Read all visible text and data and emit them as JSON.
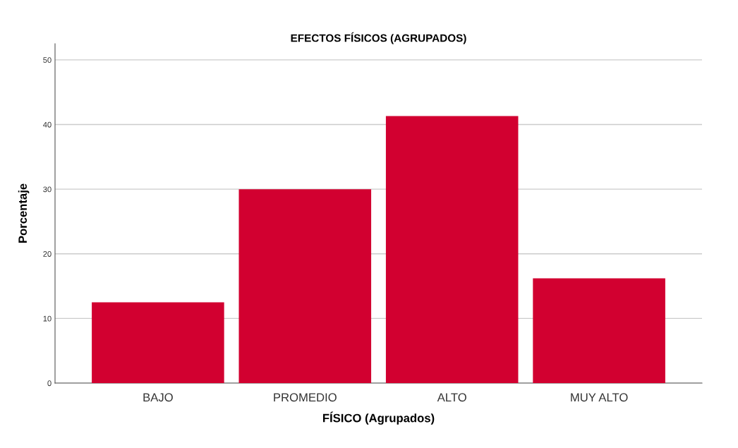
{
  "chart_data": {
    "type": "bar",
    "title": "EFECTOS FÍSICOS (AGRUPADOS)",
    "xlabel": "FÍSICO (Agrupados)",
    "ylabel": "Porcentaje",
    "categories": [
      "BAJO",
      "PROMEDIO",
      "ALTO",
      "MUY ALTO"
    ],
    "values": [
      12.5,
      30.0,
      41.3,
      16.2
    ],
    "color": "#d20030",
    "ylim": [
      0,
      52.5
    ],
    "yticks": [
      0,
      10,
      20,
      30,
      40,
      50
    ],
    "grid": "y",
    "legend": false
  }
}
